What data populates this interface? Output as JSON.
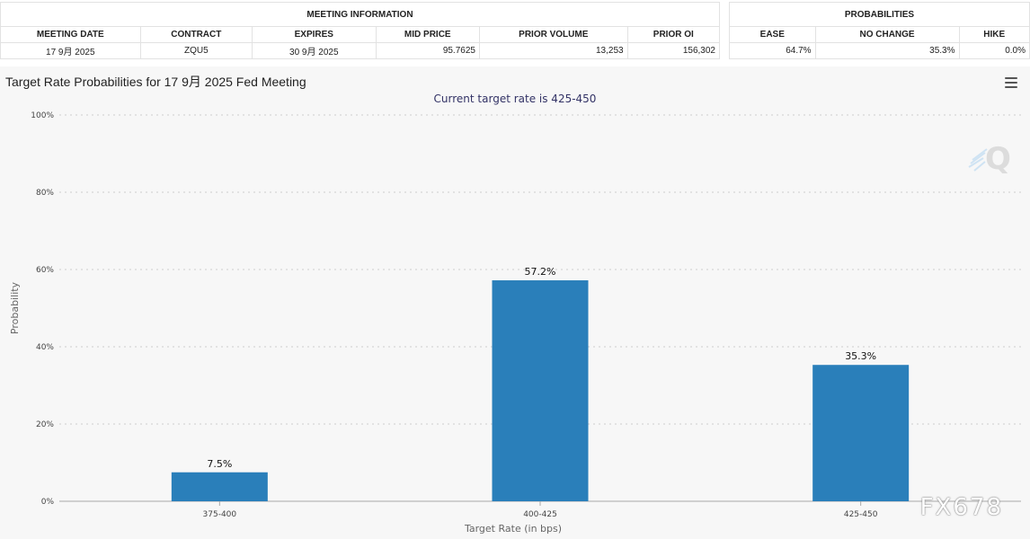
{
  "meeting_info": {
    "header": "MEETING INFORMATION",
    "columns": [
      "MEETING DATE",
      "CONTRACT",
      "EXPIRES",
      "MID PRICE",
      "PRIOR VOLUME",
      "PRIOR OI"
    ],
    "row": [
      "17 9月 2025",
      "ZQU5",
      "30 9月 2025",
      "95.7625",
      "13,253",
      "156,302"
    ]
  },
  "probabilities": {
    "header": "PROBABILITIES",
    "columns": [
      "EASE",
      "NO CHANGE",
      "HIKE"
    ],
    "row": [
      "64.7%",
      "35.3%",
      "0.0%"
    ]
  },
  "chart_title": "Target Rate Probabilities for 17 9月 2025 Fed Meeting",
  "watermark": "FX678",
  "chart_data": {
    "type": "bar",
    "title": "Target Rate Probabilities for 17 9月 2025 Fed Meeting",
    "subtitle": "Current target rate is 425-450",
    "xlabel": "Target Rate (in bps)",
    "ylabel": "Probability",
    "categories": [
      "375-400",
      "400-425",
      "425-450"
    ],
    "values": [
      7.5,
      57.2,
      35.3
    ],
    "data_labels": [
      "7.5%",
      "57.2%",
      "35.3%"
    ],
    "ylim": [
      0,
      100
    ],
    "yticks": [
      0,
      20,
      40,
      60,
      80,
      100
    ],
    "ytick_labels": [
      "0%",
      "20%",
      "40%",
      "60%",
      "80%",
      "100%"
    ],
    "grid": true,
    "bar_color": "#2a7fba"
  }
}
